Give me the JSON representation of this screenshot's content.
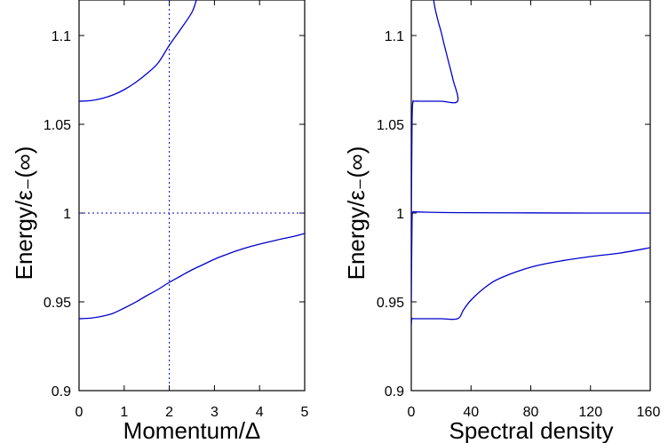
{
  "colors": {
    "curve": "#0000cc",
    "frame": "#000000",
    "background": "#ffffff"
  },
  "chart_data": [
    {
      "type": "line",
      "title": "",
      "xlabel": "Momentum/Δ",
      "ylabel": "Energy/ε₋(∞)",
      "xlim": [
        0,
        5
      ],
      "ylim": [
        0.9,
        1.12
      ],
      "xticks": [
        0,
        1,
        2,
        3,
        4,
        5
      ],
      "xtick_labels": [
        "0",
        "1",
        "2",
        "3",
        "4",
        "5"
      ],
      "yticks": [
        0.9,
        0.95,
        1.0,
        1.05,
        1.1
      ],
      "ytick_labels": [
        "0.9",
        "0.95",
        "1",
        "1.05",
        "1.1"
      ],
      "grid": false,
      "legend": "none",
      "series": [
        {
          "x": [
            0,
            0.25,
            0.5,
            0.75,
            1.0,
            1.25,
            1.5,
            1.75,
            2.0,
            2.25,
            2.5,
            2.6
          ],
          "y": [
            1.063,
            1.0633,
            1.0645,
            1.0665,
            1.0695,
            1.0735,
            1.0785,
            1.0845,
            1.0945,
            1.1035,
            1.113,
            1.12
          ]
        },
        {
          "x": [
            0,
            0.25,
            0.5,
            0.75,
            1.0,
            1.25,
            1.5,
            1.75,
            2.0,
            2.25,
            2.5,
            2.75,
            3.0,
            3.25,
            3.5,
            3.75,
            4.0,
            4.25,
            4.5,
            4.75,
            5.0
          ],
          "y": [
            0.9405,
            0.9408,
            0.9418,
            0.9435,
            0.9465,
            0.9498,
            0.9535,
            0.957,
            0.961,
            0.9645,
            0.968,
            0.971,
            0.974,
            0.9765,
            0.9788,
            0.9808,
            0.9825,
            0.984,
            0.9855,
            0.9868,
            0.9885
          ]
        }
      ],
      "reference_lines": {
        "x": 2.0,
        "y": 1.0,
        "style": "dotted"
      }
    },
    {
      "type": "line",
      "title": "",
      "xlabel": "Spectral density",
      "ylabel": "Energy/ε₋(∞)",
      "xlim": [
        0,
        160
      ],
      "ylim": [
        0.9,
        1.12
      ],
      "xticks": [
        0,
        40,
        80,
        120,
        160
      ],
      "xtick_labels": [
        "0",
        "40",
        "80",
        "120",
        "160"
      ],
      "yticks": [
        0.9,
        0.95,
        1.0,
        1.05,
        1.1
      ],
      "ytick_labels": [
        "0.9",
        "0.95",
        "1",
        "1.05",
        "1.1"
      ],
      "grid": false,
      "legend": "none",
      "series": [
        {
          "x": [
            0,
            0.3,
            1,
            3,
            10,
            20,
            31,
            35,
            40,
            50,
            60,
            80,
            100,
            120,
            140,
            160
          ],
          "y": [
            0.937,
            0.9405,
            0.9405,
            0.9405,
            0.9405,
            0.9405,
            0.9405,
            0.9455,
            0.951,
            0.9585,
            0.9635,
            0.9695,
            0.973,
            0.9755,
            0.9775,
            0.9805
          ]
        },
        {
          "x": [
            0,
            0.5,
            1,
            2,
            5,
            10,
            20,
            40,
            80,
            120,
            160
          ],
          "y": [
            0.95,
            0.995,
            1.0003,
            1.0007,
            1.0006,
            1.0005,
            1.0003,
            1.0002,
            1.0001,
            1.0,
            1.0
          ]
        },
        {
          "x": [
            0,
            0.5,
            1,
            2,
            5,
            10,
            20,
            31,
            28,
            25,
            22,
            20,
            18,
            16,
            15
          ],
          "y": [
            0.99,
            1.05,
            1.062,
            1.063,
            1.063,
            1.063,
            1.063,
            1.063,
            1.075,
            1.085,
            1.095,
            1.102,
            1.108,
            1.115,
            1.12
          ]
        }
      ]
    }
  ]
}
